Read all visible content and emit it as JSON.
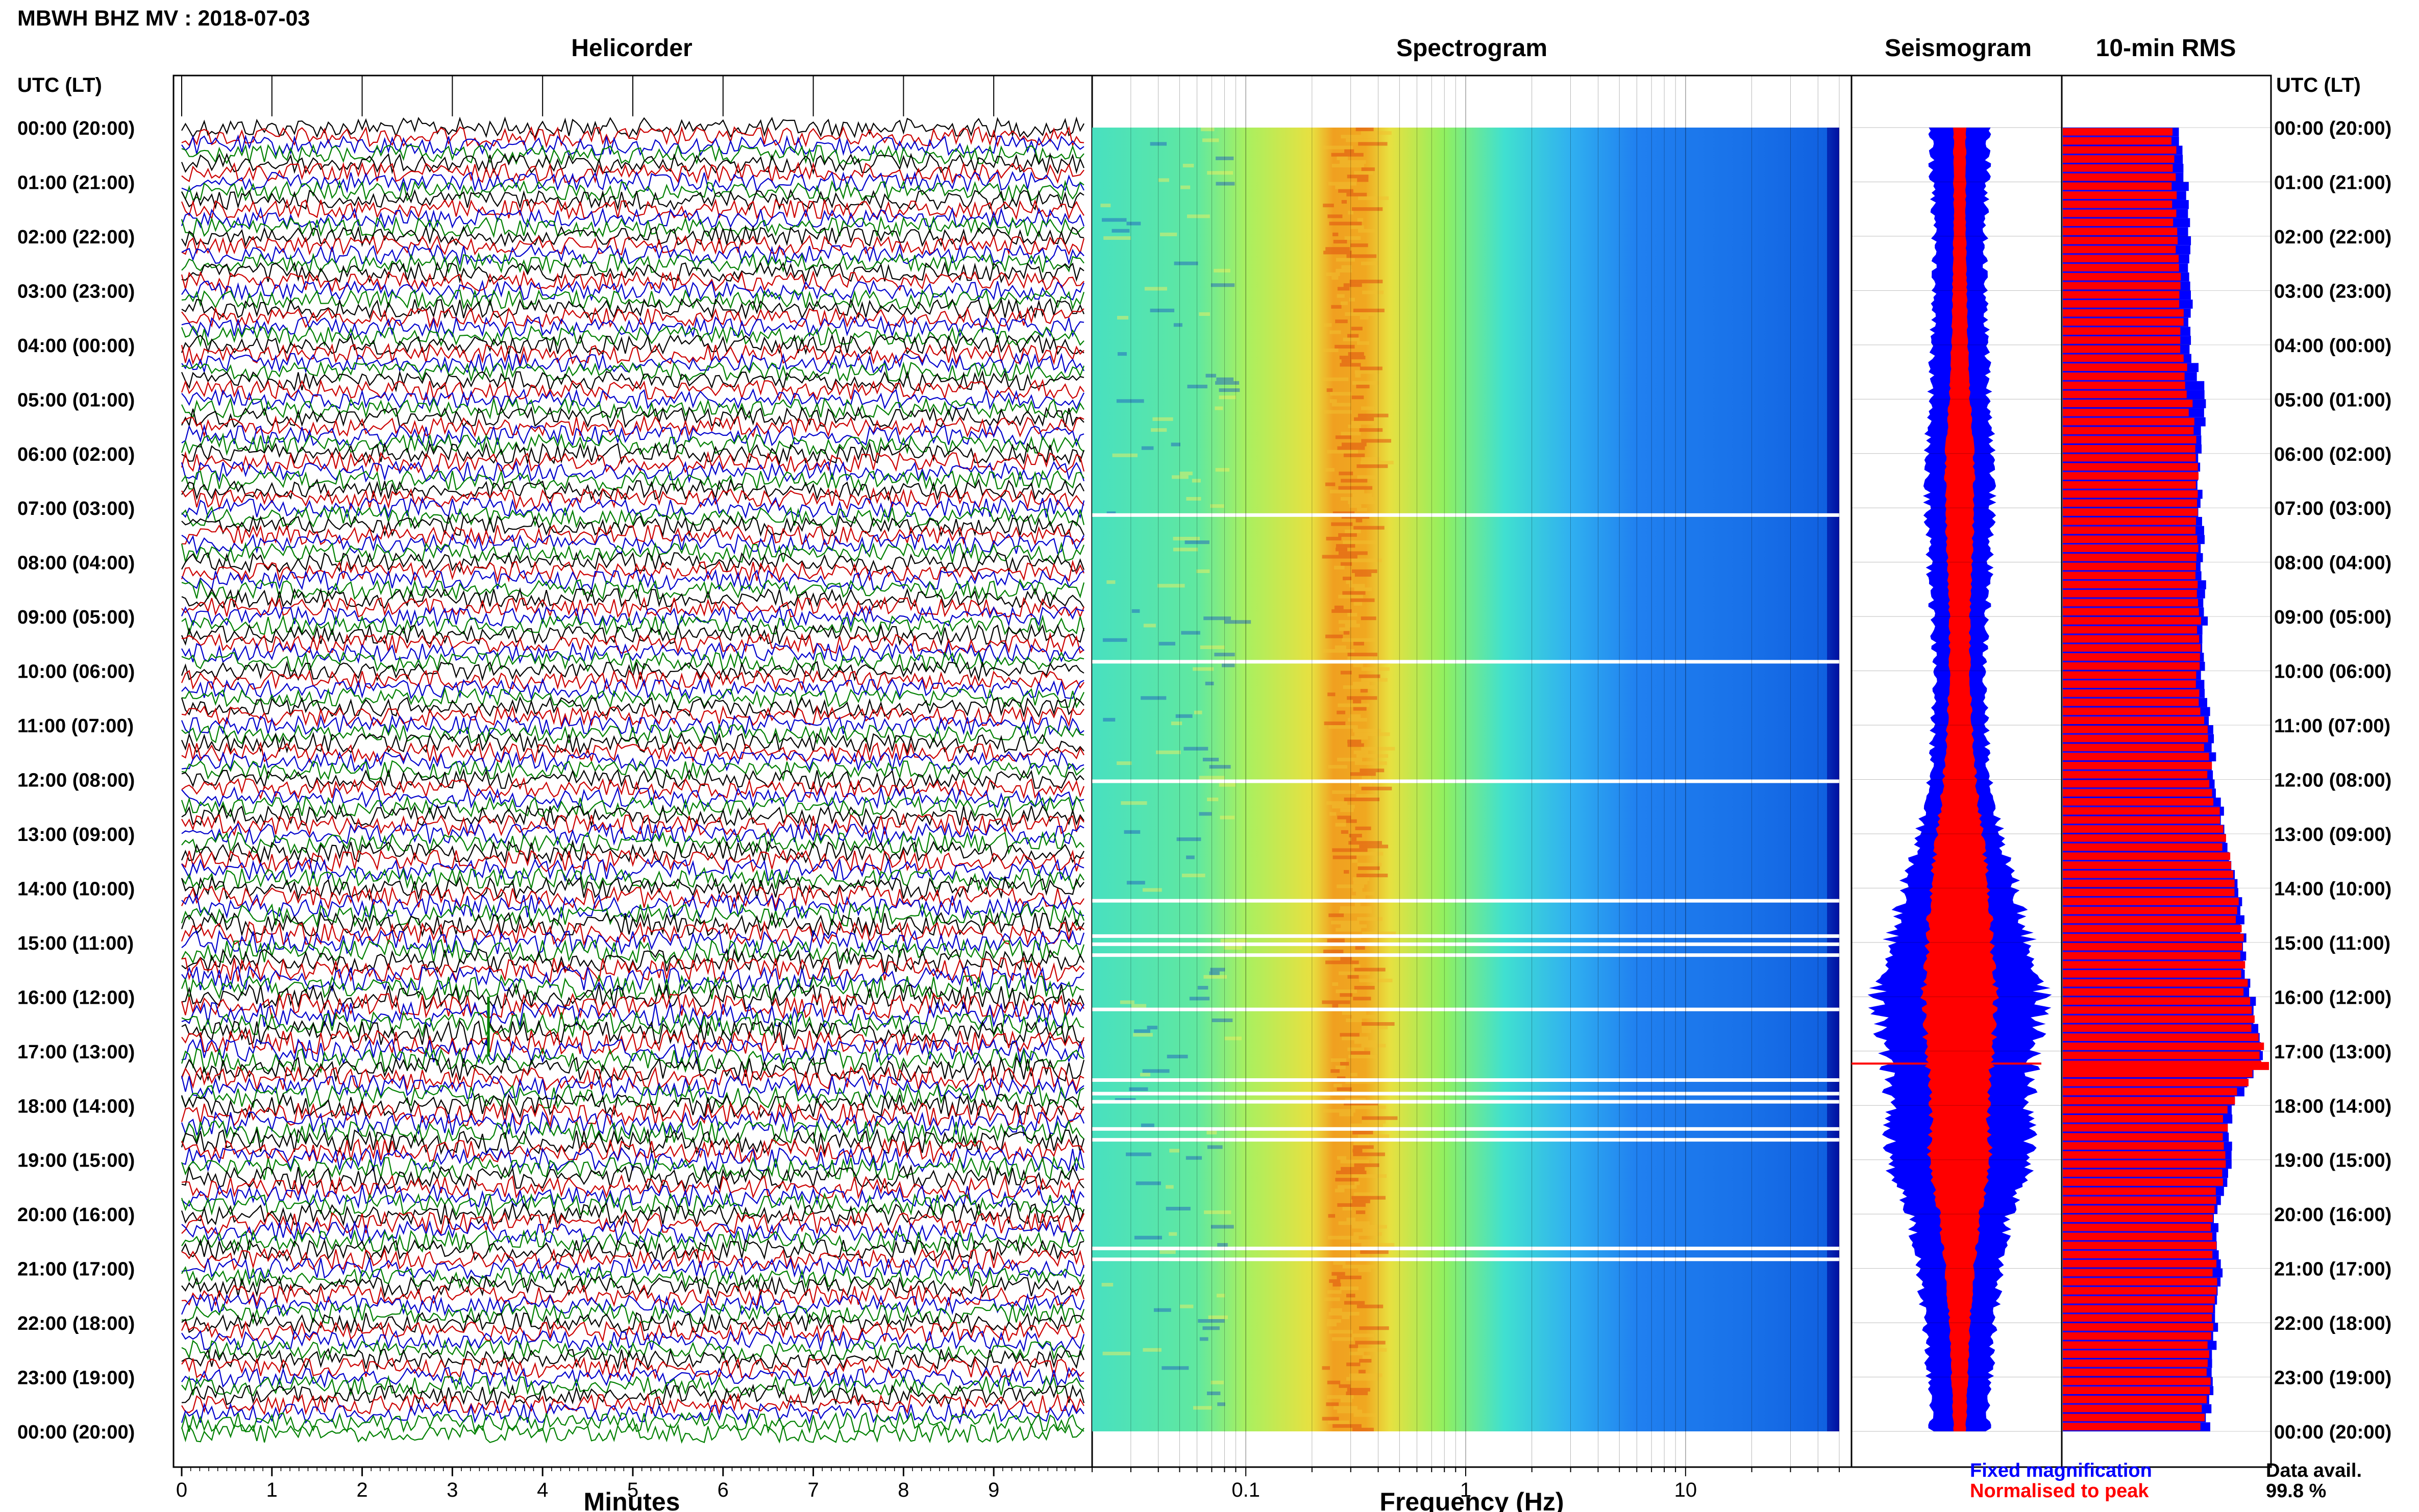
{
  "header": {
    "title": "MBWH BHZ MV : 2018-07-03"
  },
  "chart_data": {
    "type": "composite-seismic-summary",
    "station_title": "MBWH BHZ MV : 2018-07-03",
    "time_axis_label": "UTC (LT)",
    "time_labels": [
      "00:00 (20:00)",
      "01:00 (21:00)",
      "02:00 (22:00)",
      "03:00 (23:00)",
      "04:00 (00:00)",
      "05:00 (01:00)",
      "06:00 (02:00)",
      "07:00 (03:00)",
      "08:00 (04:00)",
      "09:00 (05:00)",
      "10:00 (06:00)",
      "11:00 (07:00)",
      "12:00 (08:00)",
      "13:00 (09:00)",
      "14:00 (10:00)",
      "15:00 (11:00)",
      "16:00 (12:00)",
      "17:00 (13:00)",
      "18:00 (14:00)",
      "19:00 (15:00)",
      "20:00 (16:00)",
      "21:00 (17:00)",
      "22:00 (18:00)",
      "23:00 (19:00)",
      "00:00 (20:00)"
    ],
    "panels": {
      "helicorder": {
        "title": "Helicorder",
        "xlabel": "Minutes",
        "xticks": [
          "0",
          "1",
          "2",
          "3",
          "4",
          "5",
          "6",
          "7",
          "8",
          "9"
        ],
        "xlim": [
          0,
          10
        ],
        "trace_colors": [
          "#000000",
          "#cc0000",
          "#0000cc",
          "#008000"
        ]
      },
      "spectrogram": {
        "title": "Spectrogram",
        "xlabel": "Frequency (Hz)",
        "xscale": "log",
        "xlim": [
          0.02,
          50
        ],
        "xticks": [
          "0.1",
          "1",
          "10"
        ],
        "xtick_values": [
          0.1,
          1,
          10
        ],
        "dominant_band_hz": [
          0.2,
          0.4
        ],
        "gap_hours": [
          7.1,
          9.8,
          12.0,
          14.2,
          14.85,
          15.0,
          15.2,
          16.2,
          17.5,
          17.75,
          17.9,
          18.4,
          18.6,
          20.6,
          20.8
        ]
      },
      "seismogram": {
        "title": "Seismogram",
        "legend": {
          "fixed_label": "Fixed magnification",
          "fixed_color": "#0000ff",
          "normalised_label": "Normalised to peak",
          "normalised_color": "#ff0000"
        },
        "hours": [
          0,
          1,
          2,
          3,
          4,
          5,
          6,
          7,
          8,
          9,
          10,
          11,
          12,
          13,
          14,
          15,
          16,
          17,
          18,
          19,
          20,
          21,
          22,
          23,
          24
        ],
        "fixed_halfwidth": [
          0.28,
          0.27,
          0.25,
          0.25,
          0.27,
          0.29,
          0.33,
          0.32,
          0.3,
          0.27,
          0.24,
          0.26,
          0.3,
          0.4,
          0.55,
          0.68,
          0.82,
          0.74,
          0.66,
          0.72,
          0.5,
          0.4,
          0.34,
          0.3,
          0.28
        ],
        "normalised_halfwidth": [
          0.06,
          0.06,
          0.06,
          0.07,
          0.08,
          0.1,
          0.14,
          0.14,
          0.12,
          0.1,
          0.1,
          0.12,
          0.16,
          0.22,
          0.28,
          0.32,
          0.36,
          0.33,
          0.28,
          0.3,
          0.2,
          0.14,
          0.1,
          0.08,
          0.06
        ],
        "spike_hour": 17.23
      },
      "rms": {
        "title": "10-min RMS",
        "hours": [
          0,
          1,
          2,
          3,
          4,
          5,
          6,
          7,
          8,
          9,
          10,
          11,
          12,
          13,
          14,
          15,
          16,
          17,
          18,
          19,
          20,
          21,
          22,
          23,
          24
        ],
        "blue_fraction": [
          0.56,
          0.6,
          0.61,
          0.62,
          0.62,
          0.7,
          0.66,
          0.67,
          0.68,
          0.69,
          0.68,
          0.72,
          0.74,
          0.8,
          0.86,
          0.88,
          0.92,
          0.98,
          0.81,
          0.82,
          0.74,
          0.76,
          0.74,
          0.72,
          0.7
        ],
        "red_fraction": [
          0.54,
          0.54,
          0.55,
          0.57,
          0.58,
          0.62,
          0.64,
          0.65,
          0.65,
          0.66,
          0.65,
          0.69,
          0.72,
          0.78,
          0.84,
          0.86,
          0.9,
          0.97,
          0.79,
          0.8,
          0.72,
          0.74,
          0.72,
          0.7,
          0.68
        ],
        "spike_hour": 17.2,
        "spike_fraction": 1.0,
        "data_avail_label": "Data avail.",
        "data_avail_value": "99.8 %"
      }
    }
  }
}
